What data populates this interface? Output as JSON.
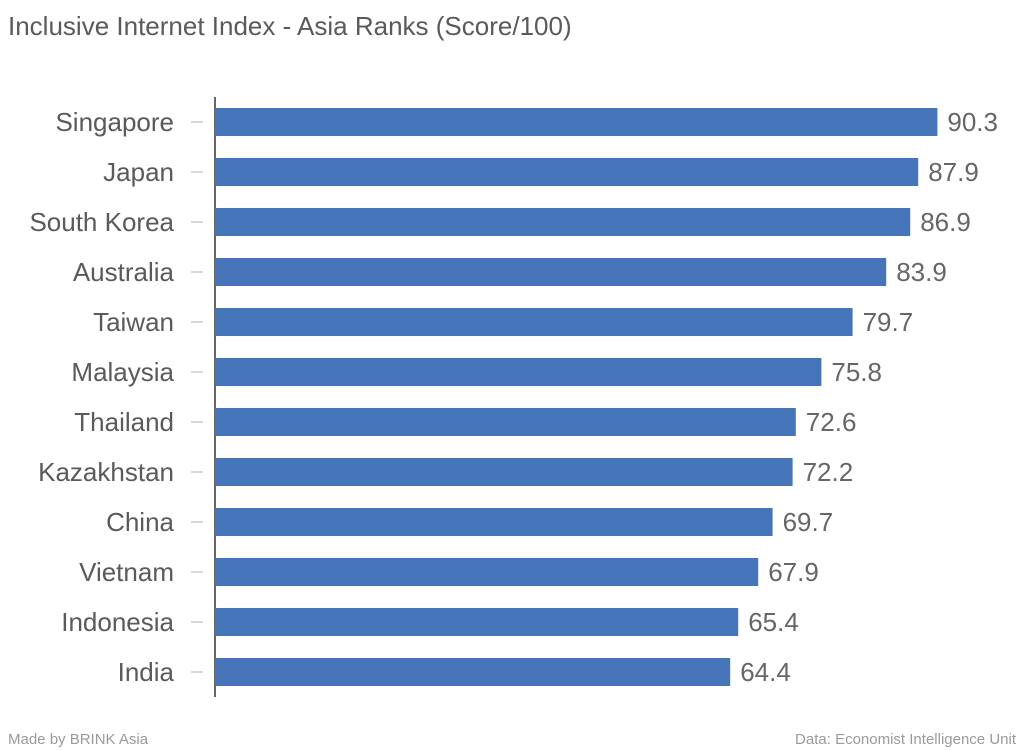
{
  "chart_data": {
    "type": "bar",
    "orientation": "horizontal",
    "title": "Inclusive Internet Index - Asia Ranks (Score/100)",
    "categories": [
      "Singapore",
      "Japan",
      "South Korea",
      "Australia",
      "Taiwan",
      "Malaysia",
      "Thailand",
      "Kazakhstan",
      "China",
      "Vietnam",
      "Indonesia",
      "India"
    ],
    "values": [
      90.3,
      87.9,
      86.9,
      83.9,
      79.7,
      75.8,
      72.6,
      72.2,
      69.7,
      67.9,
      65.4,
      64.4
    ],
    "color": "#4574b8",
    "xlim": [
      0,
      100
    ],
    "credit": "Made by BRINK Asia",
    "source": "Data: Economist Intelligence Unit"
  }
}
